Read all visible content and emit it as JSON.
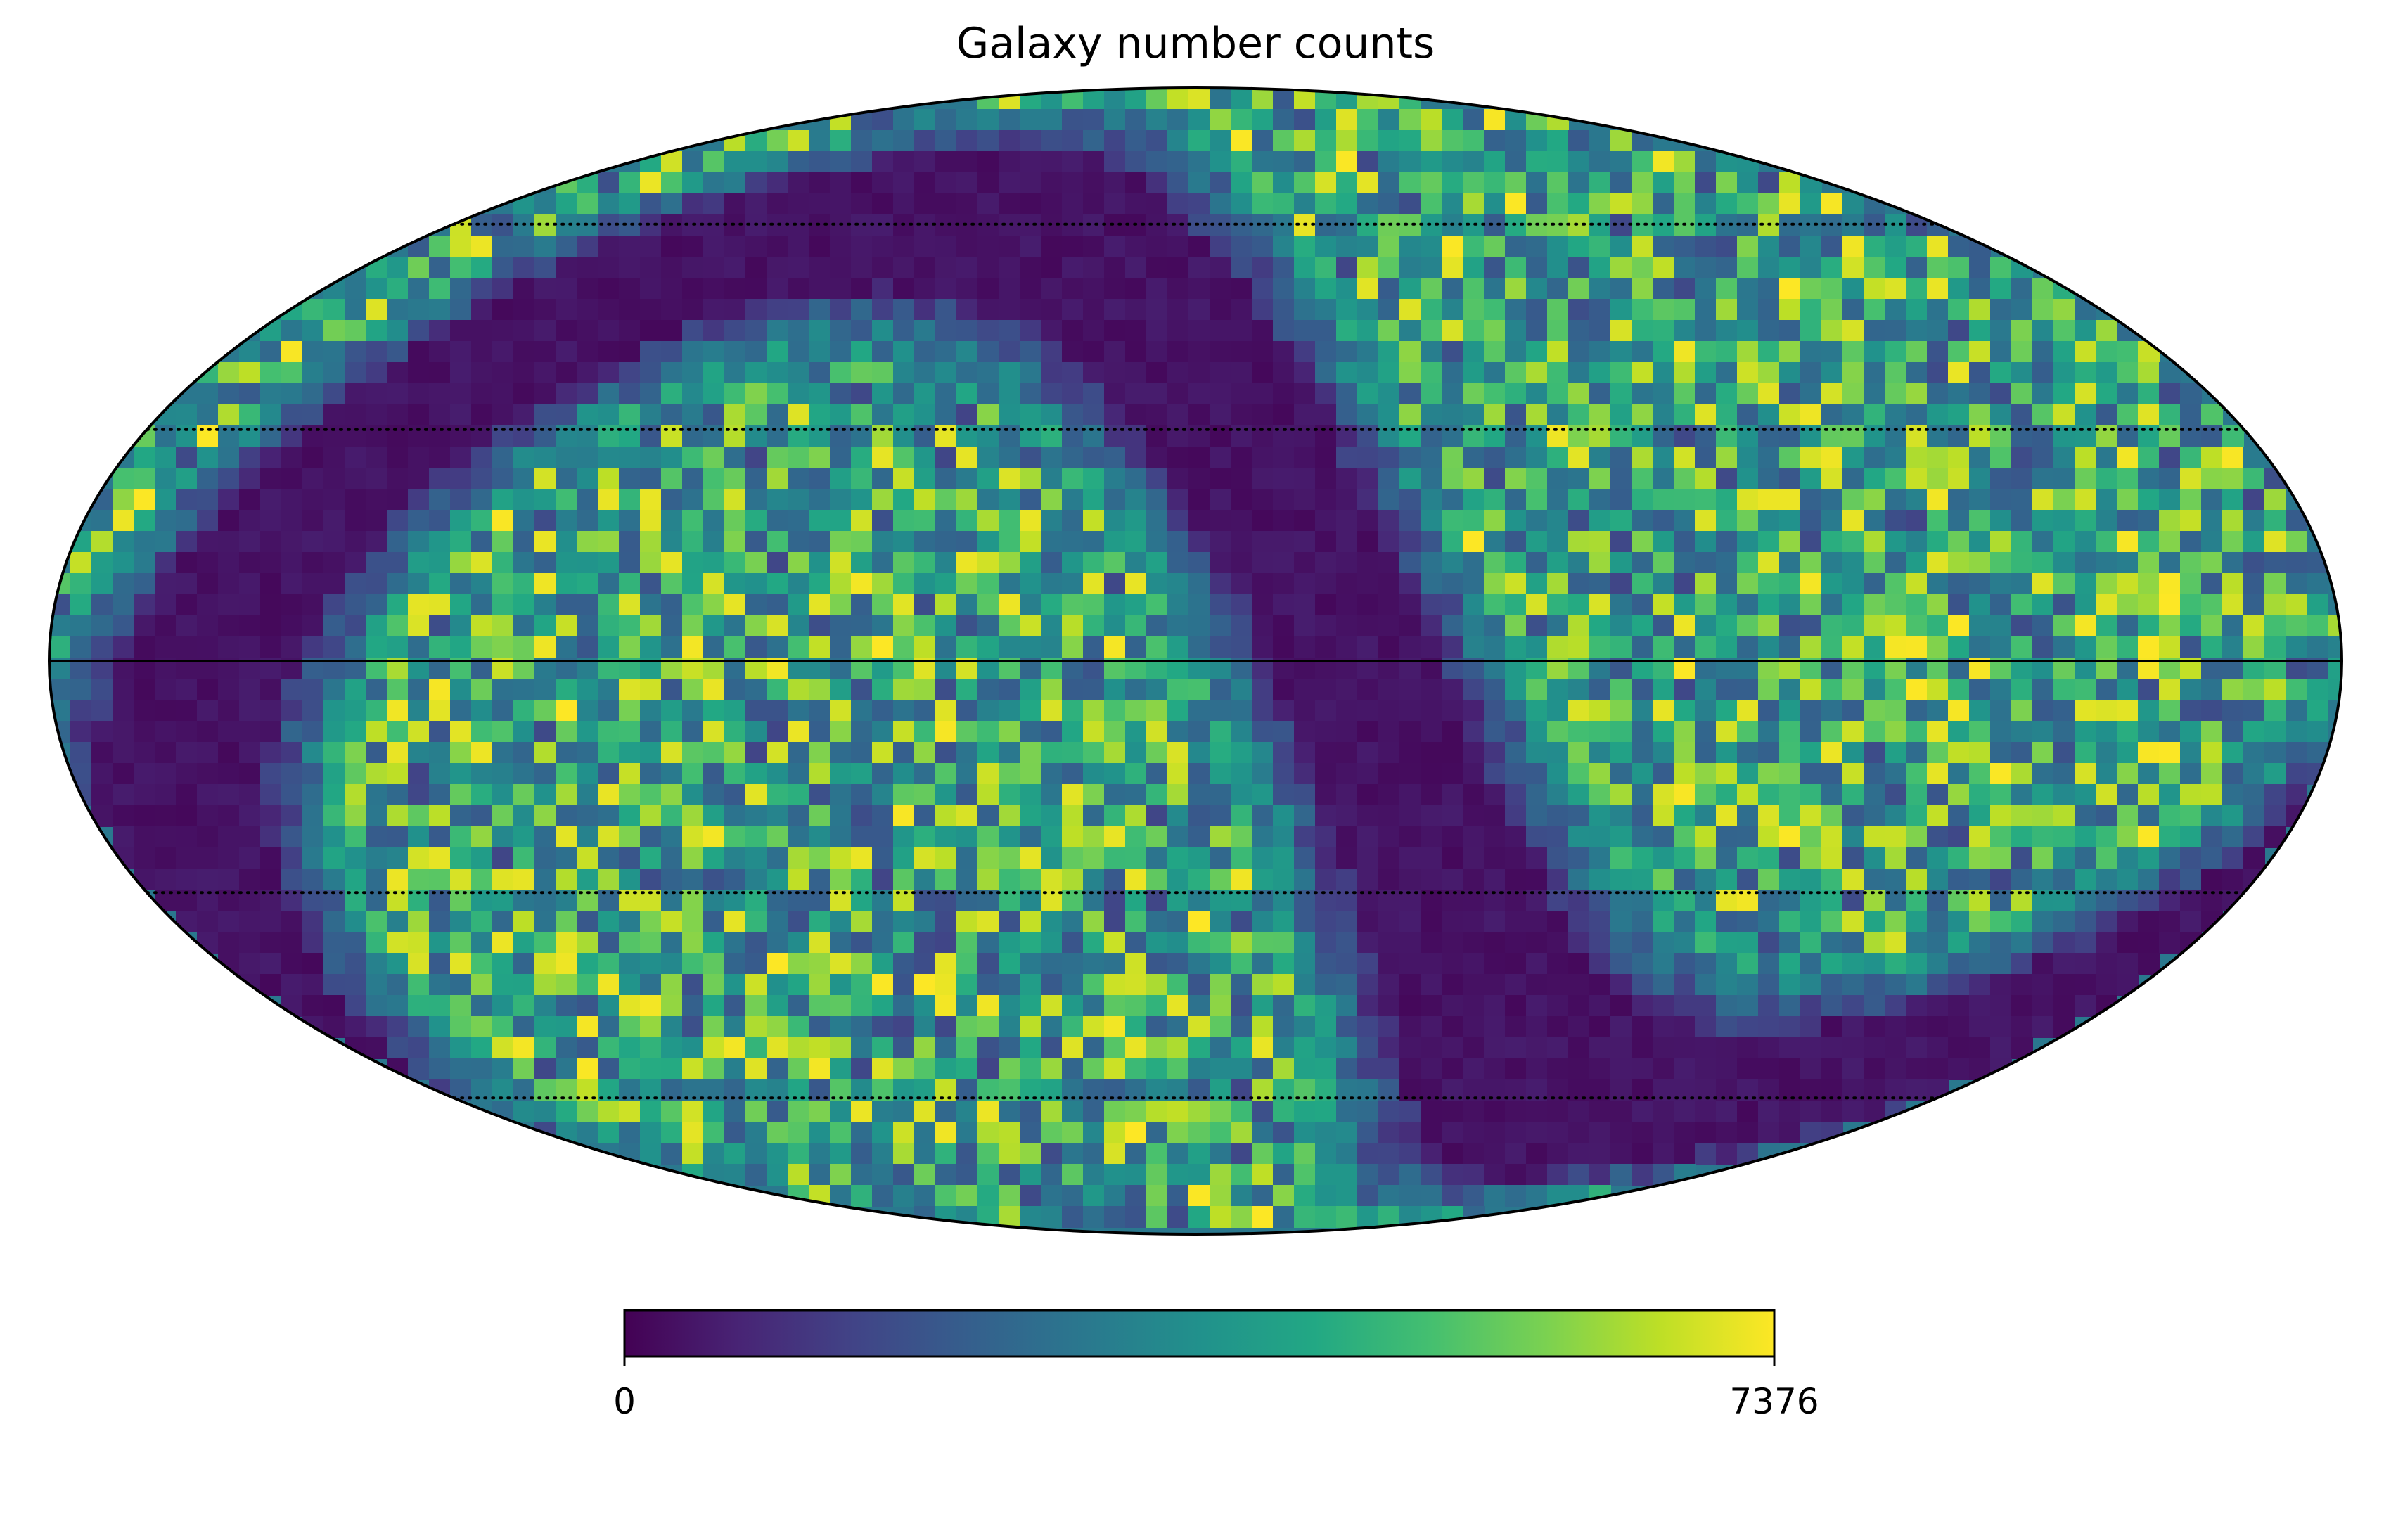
{
  "chart_data": {
    "type": "heatmap",
    "projection": "mollweide",
    "title": "Galaxy number counts",
    "colormap": "viridis",
    "colorbar": {
      "min": 0,
      "max": 7376,
      "min_label": "0",
      "max_label": "7376",
      "orientation": "horizontal",
      "placement": "bottom"
    },
    "graticule": {
      "meridian_step_deg": 30,
      "parallel_step_deg": 30,
      "style": "dotted",
      "central_axes": "solid"
    },
    "features": {
      "galactic_plane_mask": "low counts along a sinusoidal band (dark purple)",
      "background": "noisy counts between ~2000 and ~7376"
    },
    "colors": {
      "viridis_low": "#440154",
      "viridis_mid": "#21918c",
      "viridis_high": "#fde725",
      "grid": "#000000"
    }
  }
}
